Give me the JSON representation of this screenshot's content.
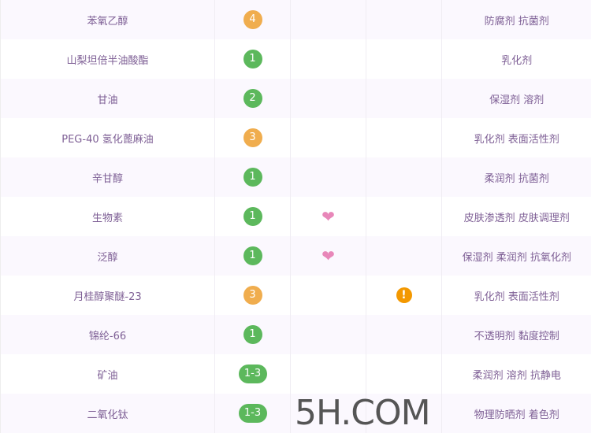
{
  "colors": {
    "green": "#5cb85c",
    "orange": "#f0ad4e",
    "heart": "#e887b9",
    "warn": "#f39800"
  },
  "rows": [
    {
      "name": "苯氧乙醇",
      "score": "4",
      "level": "orange",
      "active": false,
      "risk": false,
      "use": "防腐剂 抗菌剂"
    },
    {
      "name": "山梨坦倍半油酸酯",
      "score": "1",
      "level": "green",
      "active": false,
      "risk": false,
      "use": "乳化剂"
    },
    {
      "name": "甘油",
      "score": "2",
      "level": "green",
      "active": false,
      "risk": false,
      "use": "保湿剂 溶剂"
    },
    {
      "name": "PEG-40 氢化蓖麻油",
      "score": "3",
      "level": "orange",
      "active": false,
      "risk": false,
      "use": "乳化剂 表面活性剂"
    },
    {
      "name": "辛甘醇",
      "score": "1",
      "level": "green",
      "active": false,
      "risk": false,
      "use": "柔润剂 抗菌剂"
    },
    {
      "name": "生物素",
      "score": "1",
      "level": "green",
      "active": true,
      "risk": false,
      "use": "皮肤渗透剂 皮肤调理剂"
    },
    {
      "name": "泛醇",
      "score": "1",
      "level": "green",
      "active": true,
      "risk": false,
      "use": "保湿剂 柔润剂 抗氧化剂"
    },
    {
      "name": "月桂醇聚醚-23",
      "score": "3",
      "level": "orange",
      "active": false,
      "risk": true,
      "use": "乳化剂 表面活性剂"
    },
    {
      "name": "锦纶-66",
      "score": "1",
      "level": "green",
      "active": false,
      "risk": false,
      "use": "不透明剂 黏度控制"
    },
    {
      "name": "矿油",
      "score": "1-3",
      "level": "green",
      "active": false,
      "risk": false,
      "use": "柔润剂 溶剂 抗静电"
    },
    {
      "name": "二氧化钛",
      "score": "1-3",
      "level": "green",
      "active": false,
      "risk": false,
      "use": "物理防晒剂 着色剂"
    }
  ],
  "icons": {
    "active": "heart-icon",
    "risk": "exclamation-circle-icon"
  },
  "watermark": "5H.COM"
}
